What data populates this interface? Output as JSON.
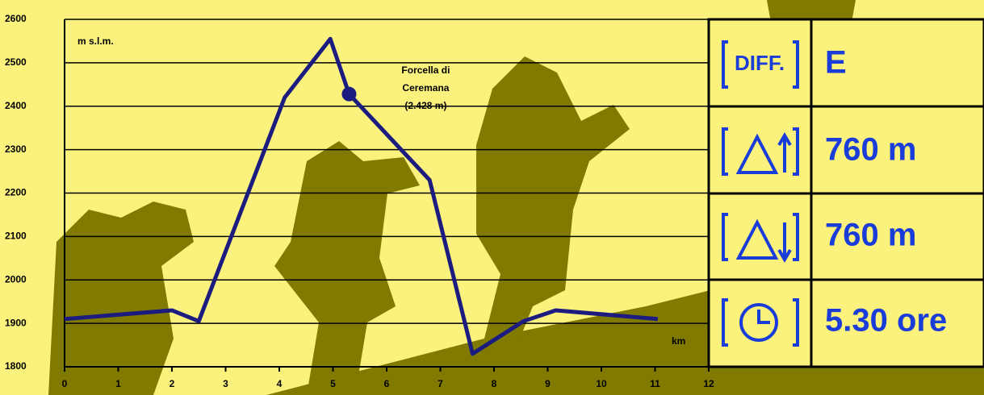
{
  "chart_data": {
    "type": "line",
    "y_label": "m s.l.m.",
    "x_label": "km",
    "x": [
      0,
      2,
      2.5,
      4.1,
      4.95,
      5.3,
      6.8,
      7.6,
      8.55,
      9.15,
      11.05
    ],
    "series": [
      {
        "color": "#1c1c80",
        "values": [
          1910,
          1930,
          1905,
          2420,
          2555,
          2428,
          2230,
          1830,
          1905,
          1930,
          1910
        ]
      }
    ],
    "annotation": {
      "lines": [
        "Forcella di",
        "Ceremana",
        "(2.428 m)"
      ],
      "x": 5.3,
      "y": 2428
    },
    "xlim": [
      0,
      12
    ],
    "ylim": [
      1800,
      2600
    ],
    "xticks": [
      0,
      1,
      2,
      3,
      4,
      5,
      6,
      7,
      8,
      9,
      10,
      11,
      12
    ],
    "yticks": [
      1800,
      1900,
      2000,
      2100,
      2200,
      2300,
      2400,
      2500,
      2600
    ],
    "grid": true
  },
  "panel": {
    "difficulty_icon": "DIFF.",
    "values": [
      "E",
      "760 m",
      "760 m",
      "5.30 ore"
    ]
  }
}
